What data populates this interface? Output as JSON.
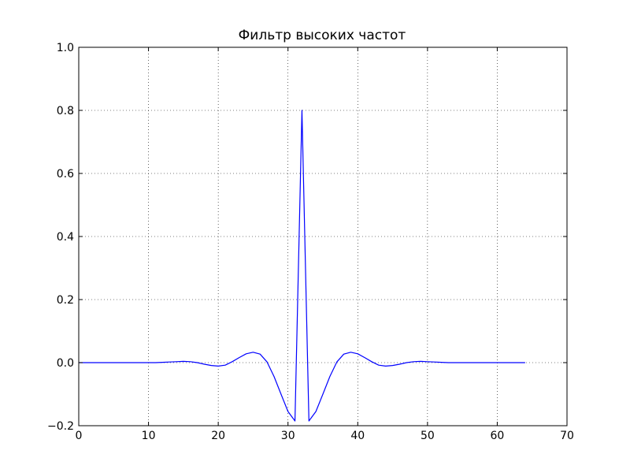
{
  "chart_data": {
    "type": "line",
    "title": "Фильтр высоких частот",
    "xlabel": "",
    "ylabel": "",
    "xlim": [
      0,
      70
    ],
    "ylim": [
      -0.2,
      1.0
    ],
    "xticks": [
      0,
      10,
      20,
      30,
      40,
      50,
      60,
      70
    ],
    "yticks": [
      -0.2,
      0.0,
      0.2,
      0.4,
      0.6,
      0.8,
      1.0
    ],
    "xtick_labels": [
      "0",
      "10",
      "20",
      "30",
      "40",
      "50",
      "60",
      "70"
    ],
    "ytick_labels": [
      "−0.2",
      "0.0",
      "0.2",
      "0.4",
      "0.6",
      "0.8",
      "1.0"
    ],
    "grid": true,
    "line_color": "#0000ff",
    "series": [
      {
        "x": [
          0,
          1,
          2,
          3,
          4,
          5,
          6,
          7,
          8,
          9,
          10,
          11,
          12,
          13,
          14,
          15,
          16,
          17,
          18,
          19,
          20,
          21,
          22,
          23,
          24,
          25,
          26,
          27,
          28,
          29,
          30,
          31,
          32,
          33,
          34,
          35,
          36,
          37,
          38,
          39,
          40,
          41,
          42,
          43,
          44,
          45,
          46,
          47,
          48,
          49,
          50,
          51,
          52,
          53,
          54,
          55,
          56,
          57,
          58,
          59,
          60,
          61,
          62,
          63,
          64
        ],
        "values": [
          0.0,
          0.0,
          0.0,
          0.0,
          0.0,
          0.0,
          0.0,
          0.0,
          0.0,
          0.0,
          0.0,
          0.0,
          0.001,
          0.002,
          0.003,
          0.004,
          0.003,
          0.0,
          -0.005,
          -0.009,
          -0.011,
          -0.008,
          0.003,
          0.016,
          0.028,
          0.033,
          0.027,
          0.002,
          -0.044,
          -0.1,
          -0.155,
          -0.185,
          0.8,
          -0.185,
          -0.155,
          -0.1,
          -0.044,
          0.002,
          0.027,
          0.033,
          0.028,
          0.016,
          0.003,
          -0.008,
          -0.011,
          -0.009,
          -0.005,
          0.0,
          0.003,
          0.004,
          0.003,
          0.002,
          0.001,
          0.0,
          0.0,
          0.0,
          0.0,
          0.0,
          0.0,
          0.0,
          0.0,
          0.0,
          0.0,
          0.0,
          0.0
        ]
      }
    ]
  }
}
